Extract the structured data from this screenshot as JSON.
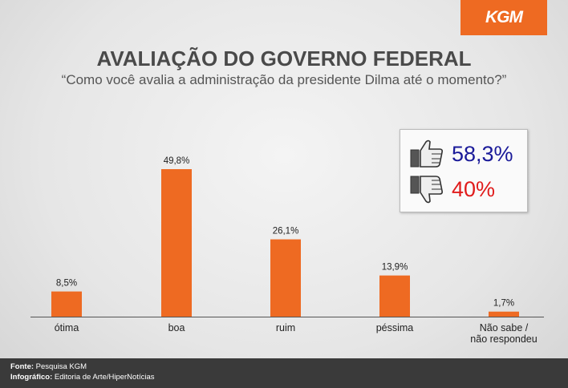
{
  "logo": "KGM",
  "chart_data": {
    "type": "bar",
    "title": "AVALIAÇÃO DO GOVERNO FEDERAL",
    "subtitle": "“Como você avalia a administração  da presidente Dilma até o momento?”",
    "categories": [
      "ótima",
      "boa",
      "ruim",
      "péssima",
      "Não sabe /\nnão respondeu"
    ],
    "values": [
      8.5,
      49.8,
      26.1,
      13.9,
      1.7
    ],
    "value_labels": [
      "8,5%",
      "49,8%",
      "26,1%",
      "13,9%",
      "1,7%"
    ],
    "ylim": [
      0,
      50
    ],
    "grid": false,
    "bar_color": "#ee6a22"
  },
  "summary": {
    "approve_icon": "thumbs-up-icon",
    "approve": "58,3%",
    "disapprove_icon": "thumbs-down-icon",
    "disapprove": "40%"
  },
  "footer": {
    "source_label": "Fonte:",
    "source": "Pesquisa KGM",
    "credit_label": "Infográfico:",
    "credit": "Editoria de Arte/HiperNotícias"
  }
}
